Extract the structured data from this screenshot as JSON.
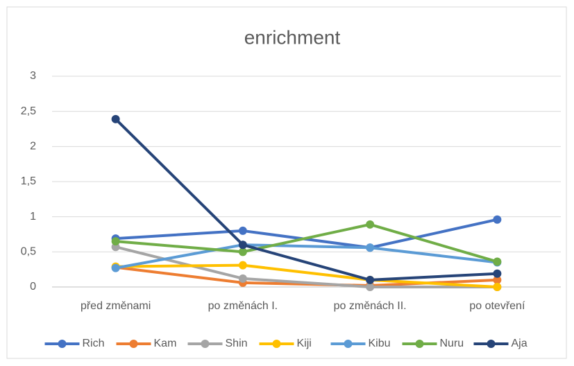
{
  "chart_data": {
    "type": "line",
    "title": "enrichment",
    "categories": [
      "před změnami",
      "po změnách I.",
      "po změnách II.",
      "po otevření"
    ],
    "series": [
      {
        "name": "Rich",
        "color": "#4472c4",
        "values": [
          0.69,
          0.8,
          0.56,
          0.96
        ]
      },
      {
        "name": "Kam",
        "color": "#ed7d31",
        "values": [
          0.28,
          0.06,
          0.02,
          0.1
        ]
      },
      {
        "name": "Shin",
        "color": "#a5a5a5",
        "values": [
          0.57,
          0.12,
          0,
          0
        ]
      },
      {
        "name": "Kiji",
        "color": "#ffc000",
        "values": [
          0.29,
          0.31,
          0.1,
          0
        ]
      },
      {
        "name": "Kibu",
        "color": "#5b9bd5",
        "values": [
          0.27,
          0.6,
          0.56,
          0.35
        ]
      },
      {
        "name": "Nuru",
        "color": "#70ad47",
        "values": [
          0.65,
          0.5,
          0.89,
          0.36
        ]
      },
      {
        "name": "Aja",
        "color": "#264478",
        "values": [
          2.39,
          0.6,
          0.1,
          0.19
        ]
      }
    ],
    "ylim": [
      0,
      3
    ],
    "yticks": [
      0,
      {
        "value": 0.5,
        "label": "0,5"
      },
      1,
      {
        "value": 1.5,
        "label": "1,5"
      },
      2,
      {
        "value": 2.5,
        "label": "2,5"
      },
      3
    ],
    "grid": true,
    "legend": "bottom"
  }
}
